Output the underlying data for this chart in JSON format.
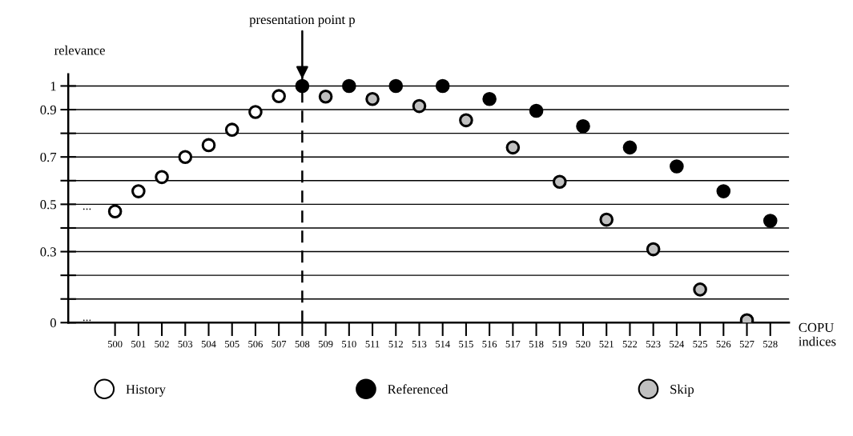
{
  "chart_data": {
    "type": "scatter",
    "ylabel": "relevance",
    "xlabel": "COPU\nindices",
    "categories": [
      "500",
      "501",
      "502",
      "503",
      "504",
      "505",
      "506",
      "507",
      "508",
      "509",
      "510",
      "511",
      "512",
      "513",
      "514",
      "515",
      "516",
      "517",
      "518",
      "519",
      "520",
      "521",
      "522",
      "523",
      "524",
      "525",
      "526",
      "527",
      "528"
    ],
    "series": [
      {
        "name": "History",
        "color": "#ffffff",
        "values": [
          0.47,
          0.555,
          0.615,
          0.7,
          0.75,
          0.815,
          0.89,
          0.957,
          null,
          null,
          null,
          null,
          null,
          null,
          null,
          null,
          null,
          null,
          null,
          null,
          null,
          null,
          null,
          null,
          null,
          null,
          null,
          null,
          null
        ]
      },
      {
        "name": "Referenced",
        "color": "#000000",
        "values": [
          null,
          null,
          null,
          null,
          null,
          null,
          null,
          null,
          1.0,
          null,
          1.0,
          null,
          1.0,
          null,
          1.0,
          null,
          0.945,
          null,
          0.895,
          null,
          0.83,
          null,
          0.74,
          null,
          0.66,
          null,
          0.555,
          null,
          0.43
        ]
      },
      {
        "name": "Skip",
        "color": "#c0c0c0",
        "values": [
          null,
          null,
          null,
          null,
          null,
          null,
          null,
          null,
          null,
          0.955,
          null,
          0.945,
          null,
          0.915,
          null,
          0.855,
          null,
          0.74,
          null,
          0.595,
          null,
          0.435,
          null,
          0.31,
          null,
          0.14,
          null,
          0.01,
          null
        ]
      }
    ],
    "ylim": [
      0,
      1.05
    ],
    "yticks": [
      0,
      {
        "value": 0.1,
        "label": null
      },
      {
        "value": 0.2,
        "label": null
      },
      0.3,
      {
        "value": 0.4,
        "label": null
      },
      0.5,
      {
        "value": 0.6,
        "label": null
      },
      0.7,
      {
        "value": 0.8,
        "label": null
      },
      0.9,
      1
    ],
    "grid": "y",
    "marker": "circle",
    "legend": "bottom",
    "ref_lines": [
      {
        "axis": "x",
        "value": "508",
        "label": "presentation point p",
        "line_style": "dashed",
        "color": "#000000"
      }
    ],
    "annotations": [
      "...",
      "..."
    ]
  }
}
